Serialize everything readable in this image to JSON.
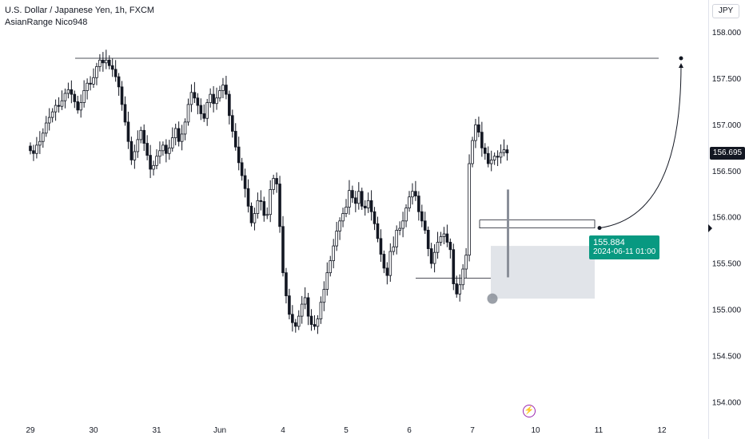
{
  "legend": {
    "symbol_line": "U.S. Dollar / Japanese Yen, 1h, FXCM",
    "indicator_line": "AsianRange Nico948"
  },
  "currency_label": "JPY",
  "last_price_label": "156.695",
  "projection_label": {
    "price": "155.884",
    "datetime": "2024-06-11 01:00"
  },
  "colors": {
    "candles": "#131722",
    "grid": "none",
    "range_box": "#d1d4dc",
    "projection_tag": "#089981",
    "event_icon": "#9c27b0"
  },
  "event_icon": "lightning-icon",
  "chart_data": {
    "type": "candlestick",
    "title": "U.S. Dollar / Japanese Yen, 1h, FXCM",
    "ylabel": "JPY",
    "xlabel": "",
    "ylim": [
      153.8,
      158.35
    ],
    "grid": false,
    "y_ticks": [
      "158.000",
      "157.500",
      "157.000",
      "156.500",
      "156.000",
      "155.500",
      "155.000",
      "154.500",
      "154.000"
    ],
    "x_ticks": [
      "29",
      "30",
      "31",
      "Jun",
      "4",
      "5",
      "6",
      "7",
      "10",
      "11",
      "12"
    ],
    "x_tick_index": [
      0,
      20,
      40,
      60,
      80,
      100,
      120,
      140,
      160,
      180,
      200
    ],
    "series_close": [
      156.72,
      156.69,
      156.78,
      156.82,
      156.91,
      157.02,
      157.08,
      157.14,
      157.21,
      157.2,
      157.26,
      157.34,
      157.38,
      157.33,
      157.25,
      157.16,
      157.24,
      157.37,
      157.45,
      157.44,
      157.51,
      157.63,
      157.7,
      157.67,
      157.7,
      157.64,
      157.6,
      157.52,
      157.41,
      157.22,
      157.03,
      156.82,
      156.62,
      156.71,
      156.84,
      156.94,
      156.8,
      156.67,
      156.52,
      156.56,
      156.66,
      156.72,
      156.78,
      156.69,
      156.75,
      156.86,
      156.96,
      156.82,
      156.9,
      157.03,
      157.22,
      157.35,
      157.29,
      157.21,
      157.12,
      157.07,
      157.24,
      157.33,
      157.23,
      157.29,
      157.37,
      157.43,
      157.33,
      157.1,
      156.93,
      156.76,
      156.59,
      156.45,
      156.31,
      156.12,
      155.94,
      156.04,
      156.18,
      156.17,
      156.02,
      156.03,
      156.3,
      156.42,
      156.36,
      155.9,
      155.4,
      155.15,
      154.95,
      154.86,
      154.82,
      154.93,
      155.06,
      155.13,
      154.93,
      154.84,
      154.82,
      154.9,
      155.08,
      155.22,
      155.4,
      155.53,
      155.69,
      155.85,
      155.96,
      156.04,
      156.11,
      156.29,
      156.21,
      156.15,
      156.28,
      156.12,
      156.1,
      156.18,
      156.06,
      155.93,
      155.77,
      155.6,
      155.45,
      155.37,
      155.63,
      155.68,
      155.86,
      155.88,
      155.96,
      156.1,
      156.22,
      156.28,
      156.23,
      156.06,
      155.96,
      155.86,
      155.66,
      155.5,
      155.62,
      155.73,
      155.79,
      155.82,
      155.73,
      155.65,
      155.28,
      155.17,
      155.27,
      155.44,
      155.59,
      156.58,
      156.83,
      157.0,
      156.92,
      156.75,
      156.69,
      156.58,
      156.62,
      156.66,
      156.65,
      156.7,
      156.73,
      156.695
    ]
  },
  "annotations": {
    "top_line_price": 157.72,
    "projection_target_price": 157.72,
    "projection_start_price": 155.884,
    "asian_range_high": 155.97,
    "asian_range_low": 155.34,
    "range_zone_high": 155.69,
    "range_zone_low": 155.12
  }
}
